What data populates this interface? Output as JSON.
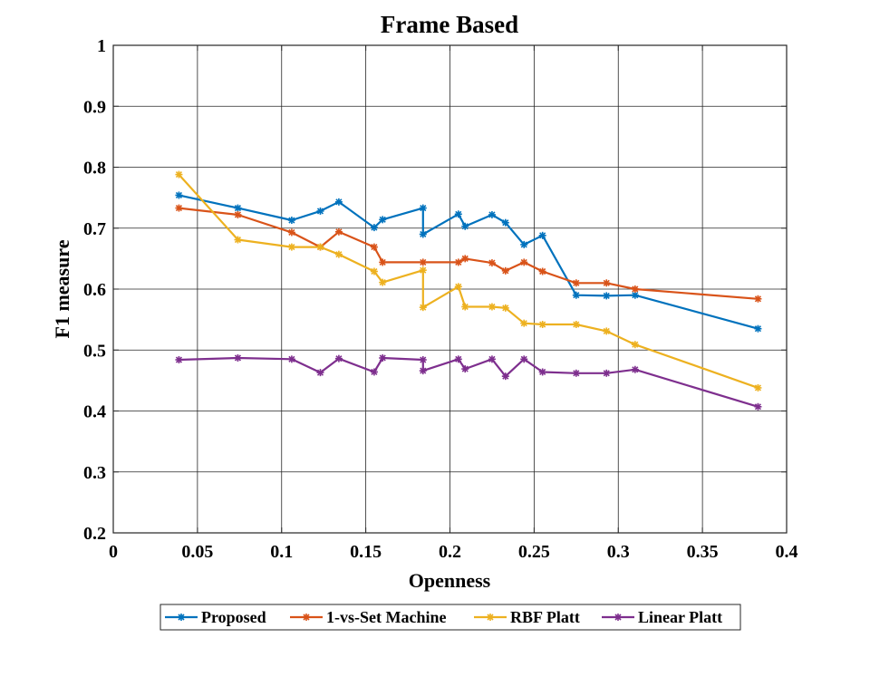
{
  "chart_data": {
    "type": "line",
    "title": "Frame Based",
    "xlabel": "Openness",
    "ylabel": "F1 measure",
    "xlim": [
      0,
      0.4
    ],
    "ylim": [
      0.2,
      1
    ],
    "xticks": [
      0,
      0.05,
      0.1,
      0.15,
      0.2,
      0.25,
      0.3,
      0.35,
      0.4
    ],
    "xtick_labels": [
      "0",
      "0.05",
      "0.1",
      "0.15",
      "0.2",
      "0.25",
      "0.3",
      "0.35",
      "0.4"
    ],
    "yticks": [
      0.2,
      0.3,
      0.4,
      0.5,
      0.6,
      0.7,
      0.8,
      0.9,
      1
    ],
    "ytick_labels": [
      "0.2",
      "0.3",
      "0.4",
      "0.5",
      "0.6",
      "0.7",
      "0.8",
      "0.9",
      "1"
    ],
    "grid": true,
    "legend_position": "bottom-outside",
    "series": [
      {
        "name": "Proposed",
        "color": "#0072BD",
        "marker": "asterisk",
        "points": [
          [
            0.039,
            0.754
          ],
          [
            0.074,
            0.733
          ],
          [
            0.106,
            0.713
          ],
          [
            0.123,
            0.728
          ],
          [
            0.134,
            0.743
          ],
          [
            0.155,
            0.701
          ],
          [
            0.16,
            0.714
          ],
          [
            0.184,
            0.733
          ],
          [
            0.184,
            0.69
          ],
          [
            0.205,
            0.723
          ],
          [
            0.209,
            0.703
          ],
          [
            0.225,
            0.722
          ],
          [
            0.233,
            0.709
          ],
          [
            0.244,
            0.673
          ],
          [
            0.255,
            0.688
          ],
          [
            0.275,
            0.59
          ],
          [
            0.293,
            0.589
          ],
          [
            0.31,
            0.59
          ],
          [
            0.383,
            0.535
          ]
        ]
      },
      {
        "name": "1-vs-Set Machine",
        "color": "#D95319",
        "marker": "asterisk",
        "points": [
          [
            0.039,
            0.733
          ],
          [
            0.074,
            0.722
          ],
          [
            0.106,
            0.693
          ],
          [
            0.123,
            0.669
          ],
          [
            0.134,
            0.694
          ],
          [
            0.155,
            0.669
          ],
          [
            0.16,
            0.644
          ],
          [
            0.184,
            0.644
          ],
          [
            0.205,
            0.644
          ],
          [
            0.209,
            0.65
          ],
          [
            0.225,
            0.643
          ],
          [
            0.233,
            0.63
          ],
          [
            0.244,
            0.644
          ],
          [
            0.255,
            0.629
          ],
          [
            0.275,
            0.61
          ],
          [
            0.293,
            0.61
          ],
          [
            0.31,
            0.6
          ],
          [
            0.383,
            0.584
          ]
        ]
      },
      {
        "name": "RBF Platt",
        "color": "#EDB120",
        "marker": "asterisk",
        "points": [
          [
            0.039,
            0.788
          ],
          [
            0.074,
            0.681
          ],
          [
            0.106,
            0.669
          ],
          [
            0.123,
            0.669
          ],
          [
            0.134,
            0.657
          ],
          [
            0.155,
            0.629
          ],
          [
            0.16,
            0.611
          ],
          [
            0.184,
            0.631
          ],
          [
            0.184,
            0.57
          ],
          [
            0.205,
            0.604
          ],
          [
            0.209,
            0.571
          ],
          [
            0.225,
            0.571
          ],
          [
            0.233,
            0.569
          ],
          [
            0.244,
            0.544
          ],
          [
            0.255,
            0.542
          ],
          [
            0.275,
            0.542
          ],
          [
            0.293,
            0.531
          ],
          [
            0.31,
            0.509
          ],
          [
            0.383,
            0.438
          ]
        ]
      },
      {
        "name": "Linear Platt",
        "color": "#7E2F8E",
        "marker": "asterisk",
        "points": [
          [
            0.039,
            0.484
          ],
          [
            0.074,
            0.487
          ],
          [
            0.106,
            0.485
          ],
          [
            0.123,
            0.463
          ],
          [
            0.134,
            0.486
          ],
          [
            0.155,
            0.464
          ],
          [
            0.16,
            0.487
          ],
          [
            0.184,
            0.484
          ],
          [
            0.184,
            0.466
          ],
          [
            0.205,
            0.485
          ],
          [
            0.209,
            0.469
          ],
          [
            0.225,
            0.485
          ],
          [
            0.233,
            0.457
          ],
          [
            0.244,
            0.485
          ],
          [
            0.255,
            0.464
          ],
          [
            0.275,
            0.462
          ],
          [
            0.293,
            0.462
          ],
          [
            0.31,
            0.468
          ],
          [
            0.383,
            0.407
          ]
        ]
      }
    ]
  }
}
